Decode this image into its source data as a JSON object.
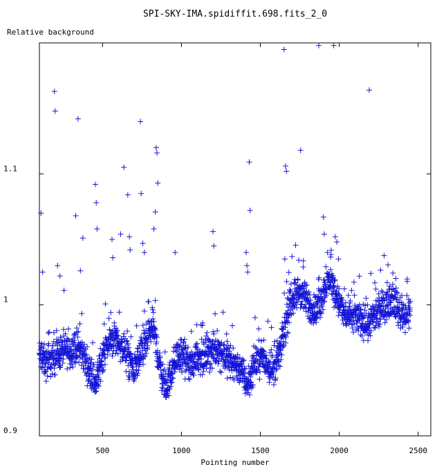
{
  "chart_data": {
    "type": "scatter",
    "title": "SPI-SKY-IMA.spidiffit.698.fits_2_0",
    "xlabel": "Pointing number",
    "ylabel": "Relative background",
    "xlim": [
      100,
      2580
    ],
    "ylim": [
      0.9,
      1.2
    ],
    "x_ticks": [
      500,
      1000,
      1500,
      2000,
      2500
    ],
    "x_tick_labels": [
      "500",
      "1000",
      "1500",
      "2000",
      "2500"
    ],
    "y_ticks": [
      0.9,
      1.0,
      1.1
    ],
    "y_tick_labels": [
      "0.9",
      "1",
      "1.1"
    ],
    "marker": "+",
    "marker_color": "#1515d6",
    "grid": false,
    "legend": "none",
    "baseline": [
      [
        100,
        0.962
      ],
      [
        140,
        0.955
      ],
      [
        180,
        0.958
      ],
      [
        220,
        0.963
      ],
      [
        260,
        0.966
      ],
      [
        300,
        0.965
      ],
      [
        340,
        0.968
      ],
      [
        380,
        0.962
      ],
      [
        420,
        0.948
      ],
      [
        460,
        0.94
      ],
      [
        500,
        0.962
      ],
      [
        540,
        0.972
      ],
      [
        580,
        0.975
      ],
      [
        620,
        0.968
      ],
      [
        660,
        0.96
      ],
      [
        700,
        0.95
      ],
      [
        740,
        0.962
      ],
      [
        780,
        0.972
      ],
      [
        820,
        0.985
      ],
      [
        860,
        0.955
      ],
      [
        900,
        0.935
      ],
      [
        940,
        0.95
      ],
      [
        980,
        0.962
      ],
      [
        1020,
        0.958
      ],
      [
        1060,
        0.953
      ],
      [
        1100,
        0.962
      ],
      [
        1140,
        0.958
      ],
      [
        1180,
        0.963
      ],
      [
        1220,
        0.966
      ],
      [
        1260,
        0.963
      ],
      [
        1300,
        0.958
      ],
      [
        1340,
        0.955
      ],
      [
        1380,
        0.95
      ],
      [
        1420,
        0.938
      ],
      [
        1460,
        0.955
      ],
      [
        1500,
        0.96
      ],
      [
        1540,
        0.955
      ],
      [
        1580,
        0.95
      ],
      [
        1620,
        0.962
      ],
      [
        1660,
        0.985
      ],
      [
        1700,
        1.005
      ],
      [
        1740,
        1.01
      ],
      [
        1780,
        1.005
      ],
      [
        1820,
        0.998
      ],
      [
        1860,
        0.995
      ],
      [
        1900,
        1.01
      ],
      [
        1940,
        1.02
      ],
      [
        1980,
        1.008
      ],
      [
        2020,
        0.995
      ],
      [
        2060,
        0.99
      ],
      [
        2100,
        0.992
      ],
      [
        2140,
        0.988
      ],
      [
        2180,
        0.985
      ],
      [
        2220,
        0.99
      ],
      [
        2260,
        0.995
      ],
      [
        2300,
        1.002
      ],
      [
        2340,
        1.005
      ],
      [
        2380,
        0.995
      ],
      [
        2420,
        0.992
      ],
      [
        2450,
        0.996
      ]
    ],
    "noise": 0.006,
    "point_count": 2200,
    "outliers": [
      [
        110,
        1.07
      ],
      [
        120,
        1.025
      ],
      [
        195,
        1.163
      ],
      [
        200,
        1.148
      ],
      [
        215,
        1.03
      ],
      [
        230,
        1.022
      ],
      [
        330,
        1.068
      ],
      [
        345,
        1.142
      ],
      [
        360,
        1.026
      ],
      [
        375,
        1.051
      ],
      [
        455,
        1.092
      ],
      [
        460,
        1.078
      ],
      [
        465,
        1.058
      ],
      [
        560,
        1.05
      ],
      [
        565,
        1.036
      ],
      [
        615,
        1.054
      ],
      [
        635,
        1.105
      ],
      [
        660,
        1.084
      ],
      [
        670,
        1.052
      ],
      [
        675,
        1.042
      ],
      [
        740,
        1.14
      ],
      [
        745,
        1.085
      ],
      [
        755,
        1.047
      ],
      [
        765,
        1.04
      ],
      [
        825,
        1.058
      ],
      [
        835,
        1.071
      ],
      [
        840,
        1.12
      ],
      [
        845,
        1.116
      ],
      [
        850,
        1.093
      ],
      [
        960,
        1.04
      ],
      [
        1200,
        1.056
      ],
      [
        1205,
        1.045
      ],
      [
        1410,
        1.04
      ],
      [
        1415,
        1.03
      ],
      [
        1420,
        1.025
      ],
      [
        1430,
        1.109
      ],
      [
        1435,
        1.072
      ],
      [
        1650,
        1.195
      ],
      [
        1655,
        1.035
      ],
      [
        1660,
        1.106
      ],
      [
        1665,
        1.102
      ],
      [
        1755,
        1.118
      ],
      [
        1870,
        1.198
      ],
      [
        1900,
        1.067
      ],
      [
        1905,
        1.054
      ],
      [
        1965,
        1.198
      ],
      [
        1975,
        1.052
      ],
      [
        1985,
        1.048
      ],
      [
        1995,
        1.035
      ],
      [
        2190,
        1.164
      ],
      [
        2200,
        1.024
      ],
      [
        2430,
        1.018
      ]
    ]
  }
}
